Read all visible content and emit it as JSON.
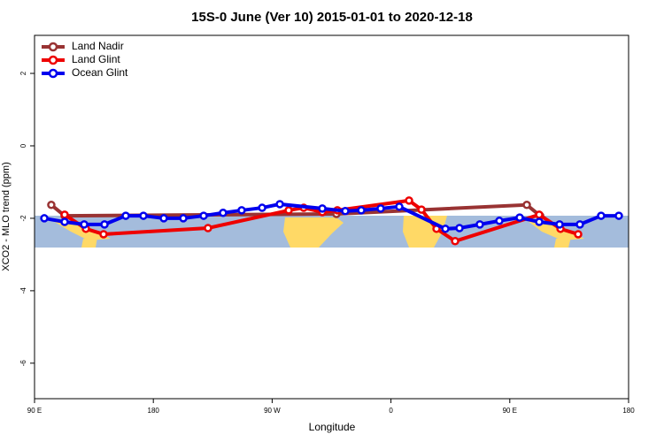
{
  "chart_data": {
    "type": "line",
    "title": "15S-0 June (Ver 10)   2015-01-01 to 2020-12-18",
    "x_label": "Longitude",
    "y_label": "XCO2 - MLO trend (ppm)",
    "xlim": [
      90,
      540
    ],
    "ylim": [
      -6.98,
      3.05
    ],
    "xticks": [
      {
        "value": 90,
        "label": "90 E"
      },
      180,
      {
        "value": 270,
        "label": "90 W"
      },
      {
        "value": 360,
        "label": "0"
      },
      {
        "value": 450,
        "label": "90 E"
      },
      {
        "value": 540,
        "label": "180"
      }
    ],
    "yticks": [
      2,
      0,
      -2,
      -4,
      -6
    ],
    "legend": "top-left",
    "series": [
      {
        "name": "Land Nadir",
        "color": "#993333",
        "x": [
          102.7,
          112.8,
          318.7,
          462.9,
          473
        ],
        "values": [
          -1.63,
          -1.93,
          -1.88,
          -1.63,
          -1.93
        ]
      },
      {
        "name": "Land Glint",
        "color": "#ee0000",
        "x": [
          112.8,
          128.9,
          142.3,
          221.4,
          282.5,
          293.9,
          308,
          319.4,
          373.7,
          383.1,
          394.5,
          408.6,
          472.3,
          488.4,
          501.8
        ],
        "values": [
          -1.9,
          -2.29,
          -2.44,
          -2.27,
          -1.78,
          -1.71,
          -1.83,
          -1.78,
          -1.51,
          -1.76,
          -2.29,
          -2.63,
          -1.9,
          -2.29,
          -2.44
        ]
      },
      {
        "name": "Ocean Glint",
        "color": "#0000ee",
        "x": [
          97.4,
          112.8,
          127.6,
          143,
          159.1,
          172.5,
          187.9,
          202.7,
          218.1,
          232.8,
          246.9,
          262.4,
          275.8,
          308,
          325.4,
          337.5,
          352.2,
          366.3,
          401.2,
          411.9,
          427.3,
          442.1,
          457.5,
          472.3,
          487.7,
          503.1,
          519.2,
          532.6
        ],
        "values": [
          -2.0,
          -2.1,
          -2.17,
          -2.17,
          -1.93,
          -1.93,
          -2.0,
          -2.0,
          -1.93,
          -1.85,
          -1.78,
          -1.71,
          -1.61,
          -1.73,
          -1.8,
          -1.78,
          -1.73,
          -1.68,
          -2.29,
          -2.27,
          -2.17,
          -2.07,
          -1.98,
          -2.1,
          -2.17,
          -2.17,
          -1.93,
          -1.93
        ]
      }
    ]
  }
}
